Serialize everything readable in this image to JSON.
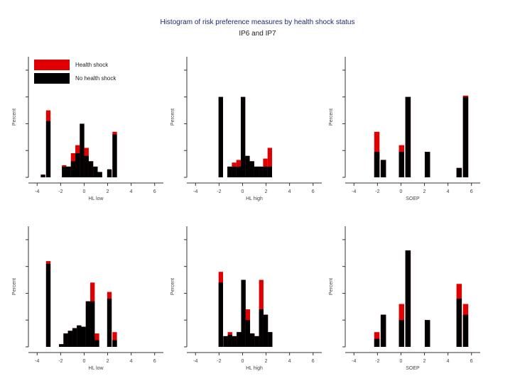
{
  "title": "Histogram of risk preference measures by health shock status",
  "subtitle": "IP6 and IP7",
  "legend": [
    {
      "label": "Health shock",
      "color": "#e00000"
    },
    {
      "label": "No health shock",
      "color": "#000000"
    }
  ],
  "chart_data": [
    {
      "type": "bar",
      "xlabel": "HL low",
      "ylabel": "Percent",
      "xticks": [
        -4,
        -2,
        0,
        2,
        4,
        6
      ],
      "xlim": [
        -4.5,
        6.5
      ],
      "ylim": [
        0,
        0.45
      ],
      "bin_width": 0.38,
      "series": [
        {
          "name": "No health shock",
          "x": [
            -3.5,
            -3.05,
            -1.7,
            -1.32,
            -0.94,
            -0.56,
            -0.18,
            0.2,
            0.58,
            0.96,
            1.34,
            2.15,
            2.6
          ],
          "values": [
            0.01,
            0.21,
            0.04,
            0.04,
            0.06,
            0.09,
            0.2,
            0.08,
            0.06,
            0.04,
            0.02,
            0.03,
            0.16
          ]
        },
        {
          "name": "Health shock",
          "x": [
            -3.5,
            -3.05,
            -1.7,
            -1.32,
            -0.94,
            -0.56,
            -0.18,
            0.2,
            0.58,
            0.96,
            1.34,
            2.15,
            2.6
          ],
          "values": [
            0.01,
            0.25,
            0.045,
            0.04,
            0.09,
            0.12,
            0.2,
            0.11,
            0.06,
            0.04,
            0.02,
            0.025,
            0.17
          ]
        }
      ]
    },
    {
      "type": "bar",
      "xlabel": "HL high",
      "ylabel": "Percent",
      "xticks": [
        -4,
        -2,
        0,
        2,
        4,
        6
      ],
      "xlim": [
        -4.5,
        6.5
      ],
      "ylim": [
        0,
        0.45
      ],
      "bin_width": 0.38,
      "series": [
        {
          "name": "No health shock",
          "x": [
            -1.85,
            -1.1,
            -0.72,
            -0.34,
            0.04,
            0.42,
            0.8,
            1.18,
            1.56,
            1.94,
            2.32
          ],
          "values": [
            0.3,
            0.04,
            0.04,
            0.04,
            0.3,
            0.08,
            0.06,
            0.04,
            0.04,
            0.04,
            0.04
          ]
        },
        {
          "name": "Health shock",
          "x": [
            -1.85,
            -1.1,
            -0.72,
            -0.34,
            0.04,
            0.42,
            0.8,
            1.18,
            1.56,
            1.94,
            2.32
          ],
          "values": [
            0.3,
            0.04,
            0.055,
            0.065,
            0.3,
            0.08,
            0.06,
            0.04,
            0.04,
            0.07,
            0.11
          ]
        }
      ]
    },
    {
      "type": "bar",
      "xlabel": "SOEP",
      "ylabel": "Percent",
      "xticks": [
        -4,
        -2,
        0,
        2,
        4,
        6
      ],
      "xlim": [
        -4.5,
        6.5
      ],
      "ylim": [
        0,
        0.45
      ],
      "bin_width": 0.45,
      "series": [
        {
          "name": "No health shock",
          "x": [
            -2.05,
            -1.5,
            0.05,
            0.6,
            2.25,
            4.95,
            5.5
          ],
          "values": [
            0.095,
            0.065,
            0.095,
            0.3,
            0.095,
            0.035,
            0.3
          ]
        },
        {
          "name": "Health shock",
          "x": [
            -2.05,
            -1.5,
            0.05,
            0.6,
            2.25,
            4.95,
            5.5
          ],
          "values": [
            0.17,
            0.065,
            0.12,
            0.3,
            0.095,
            0.035,
            0.305
          ]
        }
      ]
    },
    {
      "type": "bar",
      "xlabel": "HL low",
      "ylabel": "Percent",
      "xticks": [
        -4,
        -2,
        0,
        2,
        4,
        6
      ],
      "xlim": [
        -4.5,
        6.5
      ],
      "ylim": [
        0,
        0.45
      ],
      "bin_width": 0.38,
      "series": [
        {
          "name": "No health shock",
          "x": [
            -3.05,
            -1.95,
            -1.57,
            -1.19,
            -0.81,
            -0.43,
            -0.05,
            0.33,
            0.71,
            1.09,
            2.15,
            2.6
          ],
          "values": [
            0.31,
            0.01,
            0.05,
            0.06,
            0.07,
            0.08,
            0.075,
            0.17,
            0.17,
            0.025,
            0.18,
            0.025
          ]
        },
        {
          "name": "Health shock",
          "x": [
            -3.05,
            -1.95,
            -1.57,
            -1.19,
            -0.81,
            -0.43,
            -0.05,
            0.33,
            0.71,
            1.09,
            2.15,
            2.6
          ],
          "values": [
            0.32,
            0.01,
            0.05,
            0.06,
            0.07,
            0.08,
            0.075,
            0.17,
            0.24,
            0.05,
            0.205,
            0.055
          ]
        }
      ]
    },
    {
      "type": "bar",
      "xlabel": "HL high",
      "ylabel": "Percent",
      "xticks": [
        -4,
        -2,
        0,
        2,
        4,
        6
      ],
      "xlim": [
        -4.5,
        6.5
      ],
      "ylim": [
        0,
        0.45
      ],
      "bin_width": 0.38,
      "series": [
        {
          "name": "No health shock",
          "x": [
            -1.85,
            -1.45,
            -1.07,
            -0.69,
            -0.31,
            0.07,
            0.45,
            0.83,
            1.21,
            1.59,
            1.97,
            2.35
          ],
          "values": [
            0.24,
            0.04,
            0.045,
            0.04,
            0.055,
            0.25,
            0.1,
            0.05,
            0.04,
            0.14,
            0.12,
            0.055
          ]
        },
        {
          "name": "Health shock",
          "x": [
            -1.85,
            -1.45,
            -1.07,
            -0.69,
            -0.31,
            0.07,
            0.45,
            0.83,
            1.21,
            1.59,
            1.97,
            2.35
          ],
          "values": [
            0.28,
            0.04,
            0.055,
            0.04,
            0.055,
            0.25,
            0.14,
            0.05,
            0.04,
            0.25,
            0.12,
            0.055
          ]
        }
      ]
    },
    {
      "type": "bar",
      "xlabel": "SOEP",
      "ylabel": "Percent",
      "xticks": [
        -4,
        -2,
        0,
        2,
        4,
        6
      ],
      "xlim": [
        -4.5,
        6.5
      ],
      "ylim": [
        0,
        0.45
      ],
      "bin_width": 0.45,
      "series": [
        {
          "name": "No health shock",
          "x": [
            -2.05,
            -1.5,
            0.05,
            0.6,
            2.25,
            4.95,
            5.5
          ],
          "values": [
            0.03,
            0.12,
            0.1,
            0.36,
            0.1,
            0.18,
            0.12
          ]
        },
        {
          "name": "Health shock",
          "x": [
            -2.05,
            -1.5,
            0.05,
            0.6,
            2.25,
            4.95,
            5.5
          ],
          "values": [
            0.055,
            0.12,
            0.16,
            0.36,
            0.1,
            0.235,
            0.16
          ]
        }
      ]
    }
  ]
}
